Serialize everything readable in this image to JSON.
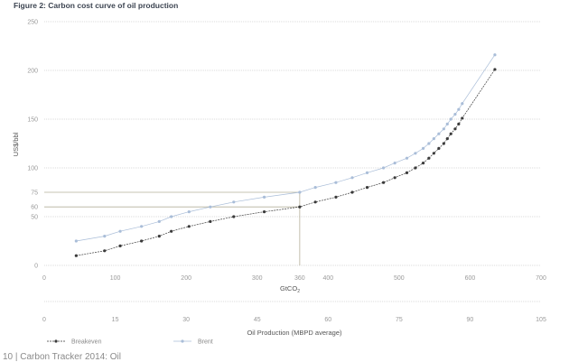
{
  "chart_data": {
    "type": "line",
    "title": "Figure 2: Carbon cost curve of oil production",
    "xlabel": "GtCO2",
    "xlabel_sub": "2",
    "xlabel_main": "GtCO",
    "ylabel": "US$/bbl",
    "secondary_xlabel": "Oil Production (MBPD average)",
    "xlim": [
      0,
      700
    ],
    "ylim": [
      0,
      250
    ],
    "xticks": [
      0,
      100,
      200,
      300,
      360,
      400,
      500,
      600,
      700
    ],
    "yticks": [
      0,
      50,
      60,
      75,
      100,
      150,
      200,
      250
    ],
    "secondary_xticks": [
      0,
      15,
      30,
      45,
      60,
      75,
      90,
      105
    ],
    "grid": true,
    "legend_position": "bottom-left",
    "reference": {
      "x": 360,
      "y_breakeven": 60,
      "y_brent": 75
    },
    "series": [
      {
        "name": "Breakeven",
        "color": "#3a3a3a",
        "x": [
          45,
          85,
          107,
          137,
          162,
          179,
          204,
          234,
          267,
          310,
          360,
          382,
          411,
          434,
          455,
          478,
          494,
          511,
          523,
          534,
          542,
          549,
          556,
          563,
          568,
          573,
          579,
          584,
          589,
          635
        ],
        "y": [
          10,
          15,
          20,
          25,
          30,
          35,
          40,
          45,
          50,
          55,
          60,
          65,
          70,
          75,
          80,
          85,
          90,
          95,
          100,
          105,
          110,
          115,
          120,
          125,
          130,
          135,
          140,
          145,
          151,
          201
        ]
      },
      {
        "name": "Brent",
        "color": "#a9bdd8",
        "x": [
          45,
          85,
          107,
          137,
          162,
          179,
          204,
          234,
          267,
          310,
          360,
          382,
          411,
          434,
          455,
          478,
          494,
          511,
          523,
          534,
          542,
          549,
          556,
          563,
          568,
          573,
          579,
          584,
          589,
          635
        ],
        "y": [
          25,
          30,
          35,
          40,
          45,
          50,
          55,
          60,
          65,
          70,
          75,
          80,
          85,
          90,
          95,
          100,
          105,
          110,
          115,
          120,
          125,
          130,
          135,
          140,
          145,
          150,
          155,
          160,
          166,
          216
        ]
      }
    ]
  },
  "footer": "10 | Carbon Tracker 2014: Oil"
}
